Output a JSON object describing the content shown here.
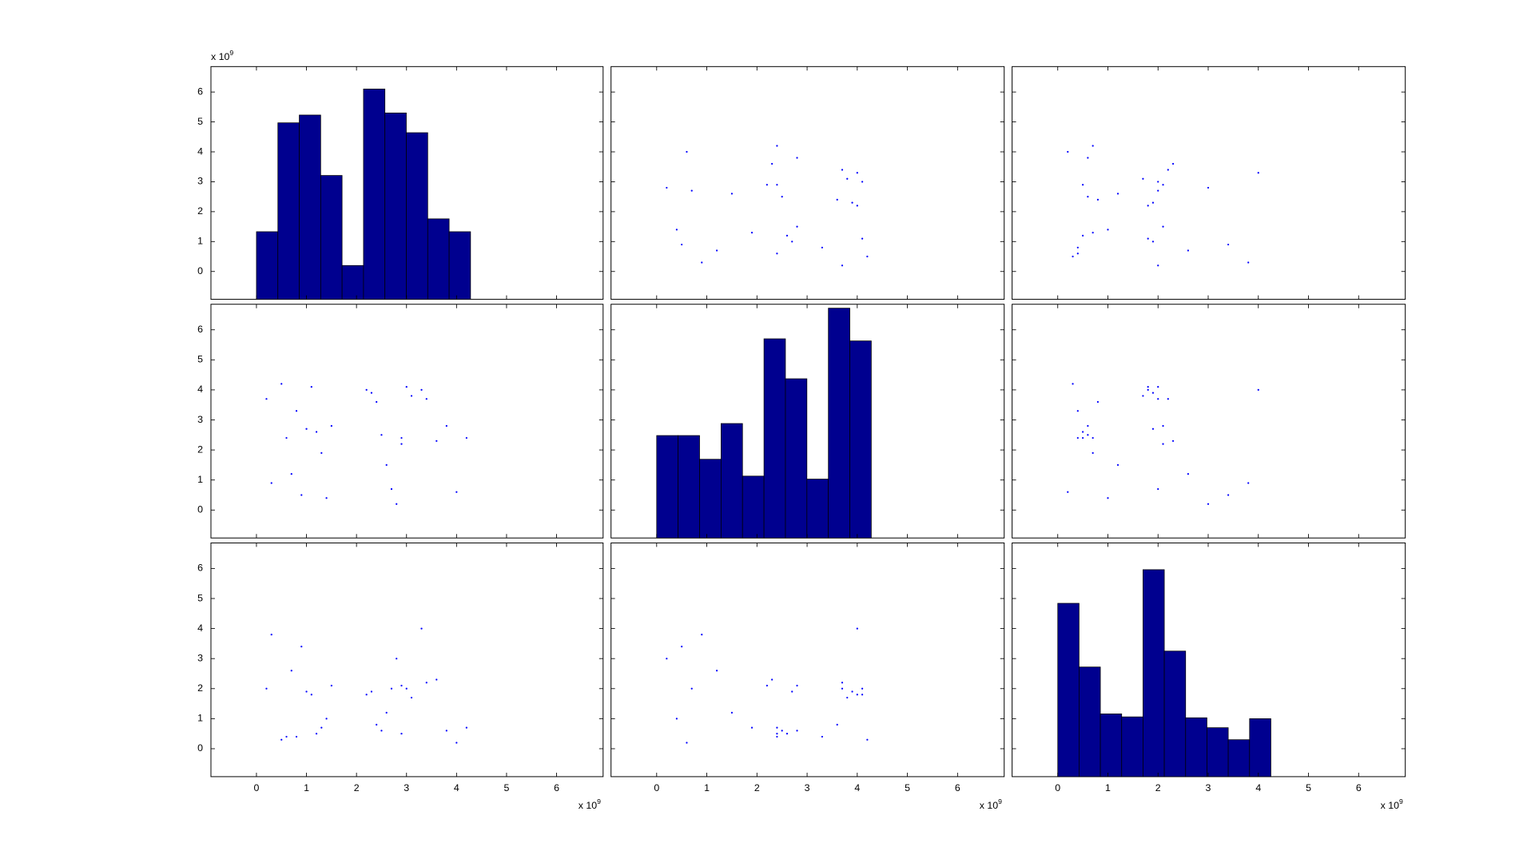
{
  "chart_data": [
    {
      "type": "histogram",
      "bins": [
        0,
        0.428,
        0.856,
        1.284,
        1.712,
        2.14,
        2.568,
        2.996,
        3.424,
        3.852,
        4.28
      ],
      "values": [
        1.33,
        4.97,
        5.23,
        3.21,
        0.2,
        6.1,
        5.3,
        4.64,
        1.76,
        1.33
      ],
      "color": "#00008f",
      "xlim": [
        -0.91,
        6.93
      ],
      "ylim": [
        -0.93,
        6.85
      ],
      "xticks": [
        0,
        1,
        2,
        3,
        4,
        5,
        6
      ],
      "yticks": [
        0,
        1,
        2,
        3,
        4,
        5,
        6
      ],
      "show_xticklabels": false,
      "show_yticklabels": true,
      "y_multiplier": {
        "base": "x 10",
        "exponent": "9"
      }
    },
    {
      "type": "scatter",
      "color": "#0000ff",
      "x": [
        3.7,
        2.4,
        0.5,
        4.1,
        1.9,
        2.8,
        4.2,
        3.9,
        2.5,
        0.7,
        2.4,
        3.8,
        4.0,
        2.3,
        0.6,
        1.2,
        2.7,
        3.6,
        0.2,
        4.1,
        2.6,
        1.5,
        3.7,
        0.9,
        2.4,
        4.0,
        3.3,
        2.2,
        0.4,
        2.8
      ],
      "y": [
        0.2,
        0.6,
        0.9,
        1.1,
        1.3,
        1.5,
        0.5,
        2.3,
        2.5,
        2.7,
        2.9,
        3.1,
        3.3,
        3.6,
        4.0,
        0.7,
        1.0,
        2.4,
        2.8,
        3.0,
        1.2,
        2.6,
        3.4,
        0.3,
        4.2,
        2.2,
        0.8,
        2.9,
        1.4,
        3.8
      ],
      "xlim": [
        -0.91,
        6.93
      ],
      "ylim": [
        -0.93,
        6.85
      ],
      "xticks": [
        0,
        1,
        2,
        3,
        4,
        5,
        6
      ],
      "yticks": [
        0,
        1,
        2,
        3,
        4,
        5,
        6
      ],
      "show_xticklabels": false,
      "show_yticklabels": false
    },
    {
      "type": "scatter",
      "color": "#0000ff",
      "x": [
        2.0,
        0.4,
        3.4,
        1.8,
        0.7,
        2.1,
        0.3,
        1.9,
        0.6,
        2.0,
        0.5,
        1.7,
        4.0,
        2.3,
        0.2,
        2.6,
        1.9,
        0.8,
        3.0,
        2.0,
        0.5,
        1.2,
        2.2,
        3.8,
        0.7,
        1.8,
        0.4,
        2.1,
        1.0,
        0.6
      ],
      "y": [
        0.2,
        0.6,
        0.9,
        1.1,
        1.3,
        1.5,
        0.5,
        2.3,
        2.5,
        2.7,
        2.9,
        3.1,
        3.3,
        3.6,
        4.0,
        0.7,
        1.0,
        2.4,
        2.8,
        3.0,
        1.2,
        2.6,
        3.4,
        0.3,
        4.2,
        2.2,
        0.8,
        2.9,
        1.4,
        3.8
      ],
      "xlim": [
        -0.91,
        6.93
      ],
      "ylim": [
        -0.93,
        6.85
      ],
      "xticks": [
        0,
        1,
        2,
        3,
        4,
        5,
        6
      ],
      "yticks": [
        0,
        1,
        2,
        3,
        4,
        5,
        6
      ],
      "show_xticklabels": false,
      "show_yticklabels": false
    },
    {
      "type": "scatter",
      "color": "#0000ff",
      "x": [
        0.2,
        0.6,
        0.9,
        1.1,
        1.3,
        1.5,
        0.5,
        2.3,
        2.5,
        2.7,
        2.9,
        3.1,
        3.3,
        3.6,
        4.0,
        0.7,
        1.0,
        2.4,
        2.8,
        3.0,
        1.2,
        2.6,
        3.4,
        0.3,
        4.2,
        2.2,
        0.8,
        2.9,
        1.4,
        3.8
      ],
      "y": [
        3.7,
        2.4,
        0.5,
        4.1,
        1.9,
        2.8,
        4.2,
        3.9,
        2.5,
        0.7,
        2.4,
        3.8,
        4.0,
        2.3,
        0.6,
        1.2,
        2.7,
        3.6,
        0.2,
        4.1,
        2.6,
        1.5,
        3.7,
        0.9,
        2.4,
        4.0,
        3.3,
        2.2,
        0.4,
        2.8
      ],
      "xlim": [
        -0.91,
        6.93
      ],
      "ylim": [
        -0.93,
        6.85
      ],
      "xticks": [
        0,
        1,
        2,
        3,
        4,
        5,
        6
      ],
      "yticks": [
        0,
        1,
        2,
        3,
        4,
        5,
        6
      ],
      "show_xticklabels": false,
      "show_yticklabels": true
    },
    {
      "type": "histogram",
      "bins": [
        0,
        0.428,
        0.856,
        1.284,
        1.712,
        2.14,
        2.568,
        2.996,
        3.424,
        3.852,
        4.28
      ],
      "values": [
        2.48,
        2.48,
        1.69,
        2.88,
        1.13,
        5.7,
        4.37,
        1.03,
        6.72,
        5.63
      ],
      "color": "#00008f",
      "xlim": [
        -0.91,
        6.93
      ],
      "ylim": [
        -0.93,
        6.85
      ],
      "xticks": [
        0,
        1,
        2,
        3,
        4,
        5,
        6
      ],
      "yticks": [
        0,
        1,
        2,
        3,
        4,
        5,
        6
      ],
      "show_xticklabels": false,
      "show_yticklabels": false
    },
    {
      "type": "scatter",
      "color": "#0000ff",
      "x": [
        2.0,
        0.4,
        3.4,
        1.8,
        0.7,
        2.1,
        0.3,
        1.9,
        0.6,
        2.0,
        0.5,
        1.7,
        4.0,
        2.3,
        0.2,
        2.6,
        1.9,
        0.8,
        3.0,
        2.0,
        0.5,
        1.2,
        2.2,
        3.8,
        0.7,
        1.8,
        0.4,
        2.1,
        1.0,
        0.6
      ],
      "y": [
        3.7,
        2.4,
        0.5,
        4.1,
        1.9,
        2.8,
        4.2,
        3.9,
        2.5,
        0.7,
        2.4,
        3.8,
        4.0,
        2.3,
        0.6,
        1.2,
        2.7,
        3.6,
        0.2,
        4.1,
        2.6,
        1.5,
        3.7,
        0.9,
        2.4,
        4.0,
        3.3,
        2.2,
        0.4,
        2.8
      ],
      "xlim": [
        -0.91,
        6.93
      ],
      "ylim": [
        -0.93,
        6.85
      ],
      "xticks": [
        0,
        1,
        2,
        3,
        4,
        5,
        6
      ],
      "yticks": [
        0,
        1,
        2,
        3,
        4,
        5,
        6
      ],
      "show_xticklabels": false,
      "show_yticklabels": false
    },
    {
      "type": "scatter",
      "color": "#0000ff",
      "x": [
        0.2,
        0.6,
        0.9,
        1.1,
        1.3,
        1.5,
        0.5,
        2.3,
        2.5,
        2.7,
        2.9,
        3.1,
        3.3,
        3.6,
        4.0,
        0.7,
        1.0,
        2.4,
        2.8,
        3.0,
        1.2,
        2.6,
        3.4,
        0.3,
        4.2,
        2.2,
        0.8,
        2.9,
        1.4,
        3.8
      ],
      "y": [
        2.0,
        0.4,
        3.4,
        1.8,
        0.7,
        2.1,
        0.3,
        1.9,
        0.6,
        2.0,
        0.5,
        1.7,
        4.0,
        2.3,
        0.2,
        2.6,
        1.9,
        0.8,
        3.0,
        2.0,
        0.5,
        1.2,
        2.2,
        3.8,
        0.7,
        1.8,
        0.4,
        2.1,
        1.0,
        0.6
      ],
      "xlim": [
        -0.91,
        6.93
      ],
      "ylim": [
        -0.93,
        6.85
      ],
      "xticks": [
        0,
        1,
        2,
        3,
        4,
        5,
        6
      ],
      "yticks": [
        0,
        1,
        2,
        3,
        4,
        5,
        6
      ],
      "show_xticklabels": true,
      "show_yticklabels": true,
      "x_multiplier": {
        "base": "x 10",
        "exponent": "9"
      }
    },
    {
      "type": "scatter",
      "color": "#0000ff",
      "x": [
        3.7,
        2.4,
        0.5,
        4.1,
        1.9,
        2.8,
        4.2,
        3.9,
        2.5,
        0.7,
        2.4,
        3.8,
        4.0,
        2.3,
        0.6,
        1.2,
        2.7,
        3.6,
        0.2,
        4.1,
        2.6,
        1.5,
        3.7,
        0.9,
        2.4,
        4.0,
        3.3,
        2.2,
        0.4,
        2.8
      ],
      "y": [
        2.0,
        0.4,
        3.4,
        1.8,
        0.7,
        2.1,
        0.3,
        1.9,
        0.6,
        2.0,
        0.5,
        1.7,
        4.0,
        2.3,
        0.2,
        2.6,
        1.9,
        0.8,
        3.0,
        2.0,
        0.5,
        1.2,
        2.2,
        3.8,
        0.7,
        1.8,
        0.4,
        2.1,
        1.0,
        0.6
      ],
      "xlim": [
        -0.91,
        6.93
      ],
      "ylim": [
        -0.93,
        6.85
      ],
      "xticks": [
        0,
        1,
        2,
        3,
        4,
        5,
        6
      ],
      "yticks": [
        0,
        1,
        2,
        3,
        4,
        5,
        6
      ],
      "show_xticklabels": true,
      "show_yticklabels": false,
      "x_multiplier": {
        "base": "x 10",
        "exponent": "9"
      }
    },
    {
      "type": "histogram",
      "bins": [
        0,
        0.425,
        0.85,
        1.275,
        1.7,
        2.125,
        2.55,
        2.975,
        3.4,
        3.825,
        4.25
      ],
      "values": [
        4.84,
        2.72,
        1.16,
        1.06,
        5.96,
        3.25,
        1.03,
        0.7,
        0.3,
        1.0
      ],
      "color": "#00008f",
      "xlim": [
        -0.91,
        6.93
      ],
      "ylim": [
        -0.93,
        6.85
      ],
      "xticks": [
        0,
        1,
        2,
        3,
        4,
        5,
        6
      ],
      "yticks": [
        0,
        1,
        2,
        3,
        4,
        5,
        6
      ],
      "show_xticklabels": true,
      "show_yticklabels": false,
      "x_multiplier": {
        "base": "x 10",
        "exponent": "9"
      }
    }
  ]
}
